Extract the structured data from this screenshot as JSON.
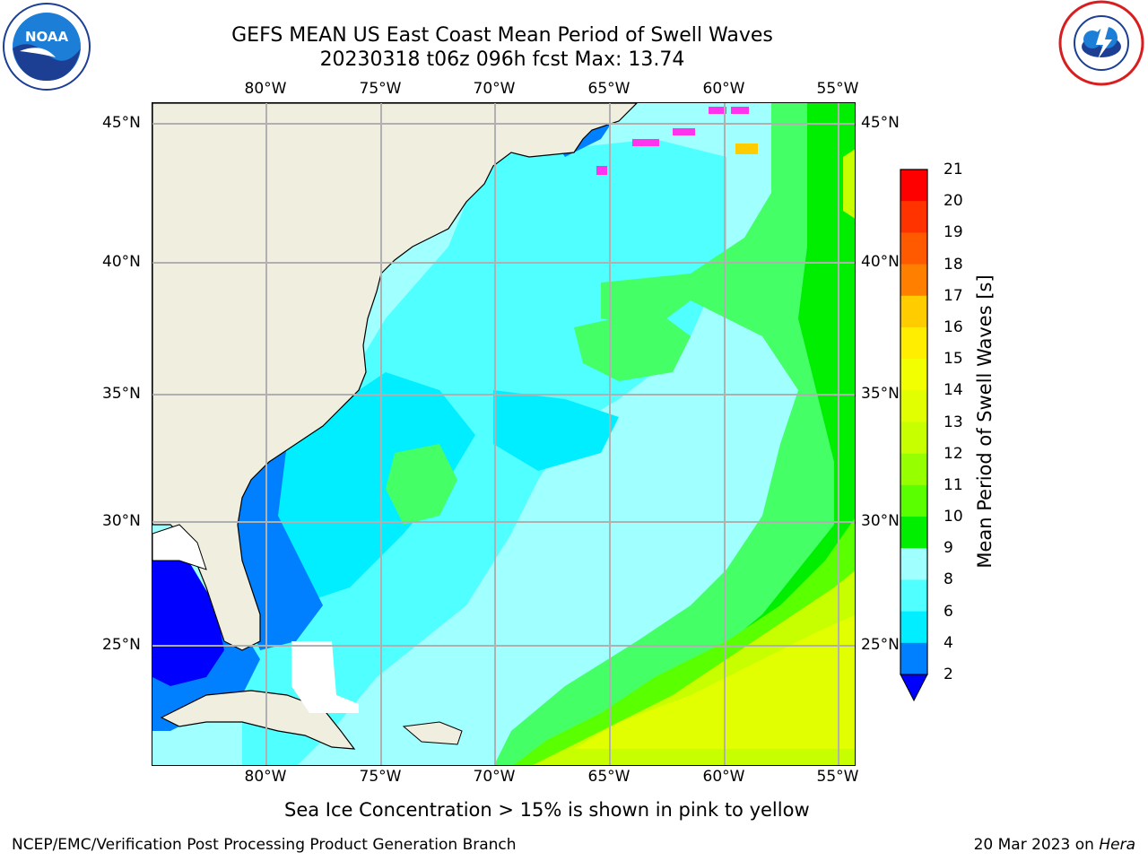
{
  "header": {
    "title_line1": "GEFS MEAN US East Coast Mean Period of Swell Waves",
    "title_line2": "20230318 t06z 096h fcst   Max: 13.74"
  },
  "map": {
    "longitude_labels": [
      "80°W",
      "75°W",
      "70°W",
      "65°W",
      "60°W",
      "55°W"
    ],
    "latitude_labels": [
      "45°N",
      "40°N",
      "35°N",
      "30°N",
      "25°N"
    ],
    "colors": {
      "land": "#efeedf",
      "coastline": "#000000",
      "grid": "#b0b0b0"
    }
  },
  "colorbar": {
    "title": "Mean Period of Swell Waves [s]",
    "ticks": [
      "21",
      "20",
      "19",
      "18",
      "17",
      "16",
      "15",
      "14",
      "13",
      "12",
      "11",
      "10",
      "9",
      "8",
      "6",
      "4",
      "2"
    ],
    "colors": [
      "#ff0000",
      "#ff3300",
      "#ff5a00",
      "#ff8000",
      "#ffa600",
      "#ffcc00",
      "#ffee00",
      "#f2ff00",
      "#e1ff00",
      "#c8ff00",
      "#96ff00",
      "#5aff00",
      "#00ee00",
      "#44ff66",
      "#a0ffff",
      "#50ffff",
      "#00eeff",
      "#0080ff"
    ],
    "extend_color": "#0000ff"
  },
  "note": "Sea Ice Concentration > 15% is shown in pink to yellow",
  "footer": {
    "left": "NCEP/EMC/Verification Post Processing Product Generation Branch",
    "right_prefix": "20 Mar 2023 on",
    "right_host": "Hera"
  },
  "logos": {
    "left": "NOAA",
    "right": "NATIONAL WEATHER SERVICE"
  }
}
